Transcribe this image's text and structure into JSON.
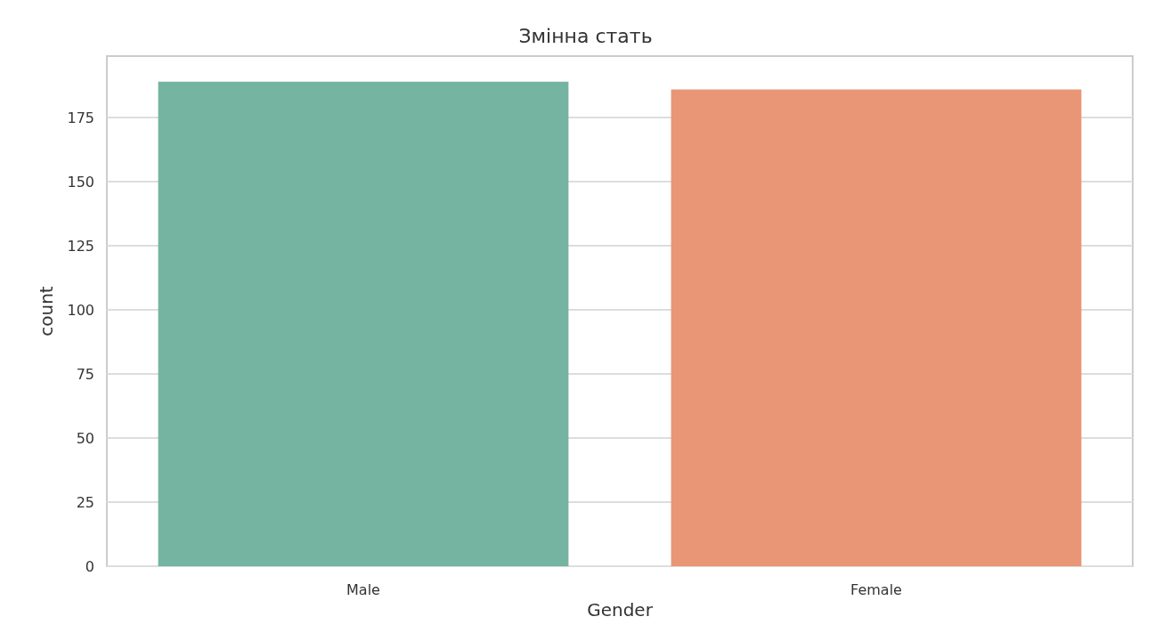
{
  "chart_data": {
    "type": "bar",
    "title": "Змінна стать",
    "xlabel": "Gender",
    "ylabel": "count",
    "categories": [
      "Male",
      "Female"
    ],
    "values": [
      189,
      186
    ],
    "colors": [
      "#74b4a0",
      "#e89675"
    ],
    "ylim": [
      0,
      199
    ],
    "yticks": [
      0,
      25,
      50,
      75,
      100,
      125,
      150,
      175
    ],
    "grid": "y"
  }
}
